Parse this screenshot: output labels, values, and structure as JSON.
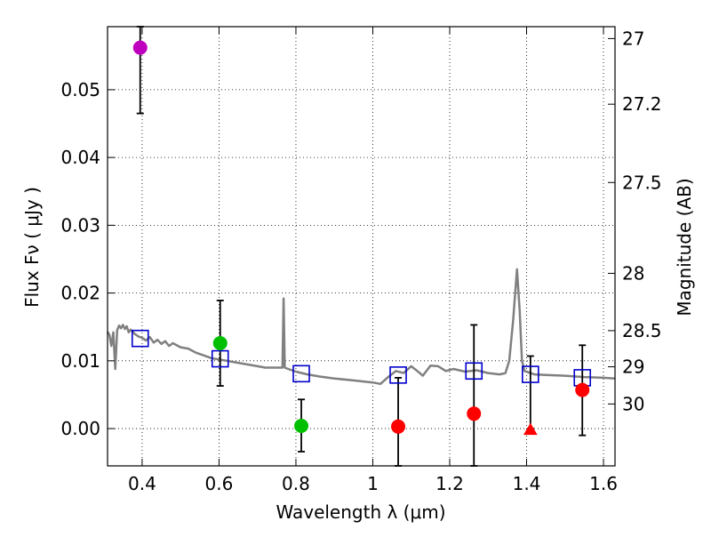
{
  "chart_data": {
    "type": "scatter",
    "xlabel": "Wavelength  λ (μm)",
    "ylabel_left": "Flux  Fν  ( μJy )",
    "ylabel_right": "Magnitude (AB)",
    "xlim": [
      0.31,
      1.63
    ],
    "ylim": [
      -0.0055,
      0.0593
    ],
    "grid": true,
    "x_ticks": [
      0.4,
      0.6,
      0.8,
      1.0,
      1.2,
      1.4,
      1.6
    ],
    "x_tick_labels": [
      "0.4",
      "0.6",
      "0.8",
      "1",
      "1.2",
      "1.4",
      "1.6"
    ],
    "y_ticks": [
      0.0,
      0.01,
      0.02,
      0.03,
      0.04,
      0.05
    ],
    "y_tick_labels": [
      "0.00",
      "0.01",
      "0.02",
      "0.03",
      "0.04",
      "0.05"
    ],
    "right_ticks": [
      {
        "mag": 27,
        "label": "27"
      },
      {
        "mag": 27.2,
        "label": "27.2"
      },
      {
        "mag": 27.5,
        "label": "27.5"
      },
      {
        "mag": 28,
        "label": "28"
      },
      {
        "mag": 28.5,
        "label": "28.5"
      },
      {
        "mag": 29,
        "label": "29"
      },
      {
        "mag": 30,
        "label": "30"
      }
    ],
    "colors": {
      "template": "#808080",
      "model": "#0000cc",
      "purple": "#bf00bf",
      "green": "#00bf00",
      "red": "#ff0000",
      "errorbar": "#000000",
      "grid": "#000000"
    },
    "template_spectrum": [
      [
        0.31,
        0.0143
      ],
      [
        0.315,
        0.0138
      ],
      [
        0.32,
        0.0122
      ],
      [
        0.325,
        0.0142
      ],
      [
        0.33,
        0.0088
      ],
      [
        0.335,
        0.0145
      ],
      [
        0.34,
        0.0152
      ],
      [
        0.345,
        0.0148
      ],
      [
        0.35,
        0.0153
      ],
      [
        0.355,
        0.0147
      ],
      [
        0.36,
        0.0151
      ],
      [
        0.365,
        0.0142
      ],
      [
        0.37,
        0.0146
      ],
      [
        0.38,
        0.014
      ],
      [
        0.39,
        0.0136
      ],
      [
        0.4,
        0.0134
      ],
      [
        0.41,
        0.013
      ],
      [
        0.42,
        0.0135
      ],
      [
        0.43,
        0.0127
      ],
      [
        0.44,
        0.0131
      ],
      [
        0.45,
        0.0125
      ],
      [
        0.46,
        0.0129
      ],
      [
        0.47,
        0.0122
      ],
      [
        0.48,
        0.0126
      ],
      [
        0.5,
        0.012
      ],
      [
        0.52,
        0.0118
      ],
      [
        0.54,
        0.0112
      ],
      [
        0.56,
        0.0108
      ],
      [
        0.58,
        0.0104
      ],
      [
        0.6,
        0.0102
      ],
      [
        0.62,
        0.01
      ],
      [
        0.65,
        0.0097
      ],
      [
        0.68,
        0.0094
      ],
      [
        0.7,
        0.0092
      ],
      [
        0.72,
        0.009
      ],
      [
        0.75,
        0.009
      ],
      [
        0.765,
        0.009
      ],
      [
        0.768,
        0.0192
      ],
      [
        0.771,
        0.009
      ],
      [
        0.78,
        0.0088
      ],
      [
        0.8,
        0.0084
      ],
      [
        0.83,
        0.008
      ],
      [
        0.86,
        0.0077
      ],
      [
        0.9,
        0.0074
      ],
      [
        0.95,
        0.0071
      ],
      [
        1.0,
        0.0068
      ],
      [
        1.02,
        0.0066
      ],
      [
        1.04,
        0.0076
      ],
      [
        1.06,
        0.0085
      ],
      [
        1.08,
        0.0082
      ],
      [
        1.1,
        0.0092
      ],
      [
        1.12,
        0.0083
      ],
      [
        1.13,
        0.0078
      ],
      [
        1.15,
        0.0093
      ],
      [
        1.17,
        0.0092
      ],
      [
        1.19,
        0.0085
      ],
      [
        1.21,
        0.0088
      ],
      [
        1.24,
        0.0084
      ],
      [
        1.27,
        0.0086
      ],
      [
        1.3,
        0.0082
      ],
      [
        1.33,
        0.008
      ],
      [
        1.345,
        0.0082
      ],
      [
        1.355,
        0.01
      ],
      [
        1.365,
        0.016
      ],
      [
        1.375,
        0.0235
      ],
      [
        1.382,
        0.0175
      ],
      [
        1.388,
        0.01
      ],
      [
        1.395,
        0.0085
      ],
      [
        1.42,
        0.008
      ],
      [
        1.45,
        0.0079
      ],
      [
        1.5,
        0.0078
      ],
      [
        1.55,
        0.0076
      ],
      [
        1.6,
        0.0075
      ],
      [
        1.63,
        0.0074
      ]
    ],
    "model_photometry": [
      [
        0.395,
        0.0133
      ],
      [
        0.603,
        0.0103
      ],
      [
        0.814,
        0.0081
      ],
      [
        1.066,
        0.0079
      ],
      [
        1.263,
        0.0085
      ],
      [
        1.41,
        0.008
      ],
      [
        1.545,
        0.0075
      ]
    ],
    "observations": [
      {
        "x": 0.395,
        "y": 0.0562,
        "yerr_low": 0.0465,
        "yerr_high": 0.0593,
        "color": "purple",
        "marker": "circle"
      },
      {
        "x": 0.603,
        "y": 0.0126,
        "yerr_low": 0.0063,
        "yerr_high": 0.0189,
        "color": "green",
        "marker": "circle"
      },
      {
        "x": 0.814,
        "y": 0.0004,
        "yerr_low": -0.0034,
        "yerr_high": 0.0043,
        "color": "green",
        "marker": "circle"
      },
      {
        "x": 1.066,
        "y": 0.0003,
        "yerr_low": -0.0055,
        "yerr_high": 0.0075,
        "color": "red",
        "marker": "circle"
      },
      {
        "x": 1.263,
        "y": 0.0022,
        "yerr_low": -0.0055,
        "yerr_high": 0.0153,
        "color": "red",
        "marker": "circle"
      },
      {
        "x": 1.41,
        "y": -0.0002,
        "yerr_low": 0.0,
        "yerr_high": 0.0107,
        "color": "red",
        "marker": "triangle"
      },
      {
        "x": 1.545,
        "y": 0.0057,
        "yerr_low": -0.001,
        "yerr_high": 0.0123,
        "color": "red",
        "marker": "circle"
      }
    ]
  }
}
